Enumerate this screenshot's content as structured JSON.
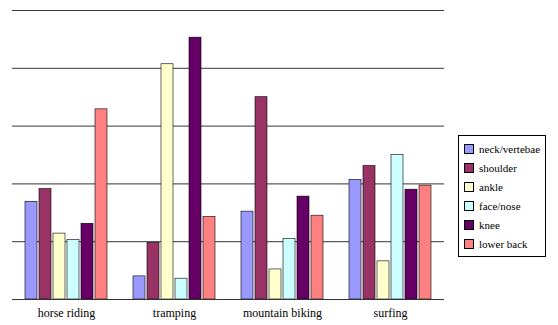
{
  "chart_data": {
    "type": "bar",
    "categories": [
      "horse riding",
      "tramping",
      "mountain biking",
      "surfing"
    ],
    "series": [
      {
        "name": "neck/vertebae",
        "color": "#9999ff",
        "values": [
          1.69,
          0.4,
          1.52,
          2.07
        ]
      },
      {
        "name": "shoulder",
        "color": "#993366",
        "values": [
          1.91,
          0.98,
          3.5,
          2.31
        ]
      },
      {
        "name": "ankle",
        "color": "#ffffcc",
        "values": [
          1.14,
          4.07,
          0.52,
          0.66
        ]
      },
      {
        "name": "face/nose",
        "color": "#ccffff",
        "values": [
          1.03,
          0.36,
          1.05,
          2.5
        ]
      },
      {
        "name": "knee",
        "color": "#660066",
        "values": [
          1.31,
          4.53,
          1.78,
          1.9
        ]
      },
      {
        "name": "lower back",
        "color": "#ff8080",
        "values": [
          3.29,
          1.43,
          1.45,
          1.97
        ]
      }
    ],
    "ylim": [
      0,
      5
    ],
    "yticks": [
      0,
      1,
      2,
      3,
      4,
      5
    ],
    "grid": true,
    "tick_labels": "x",
    "legend": "right"
  }
}
